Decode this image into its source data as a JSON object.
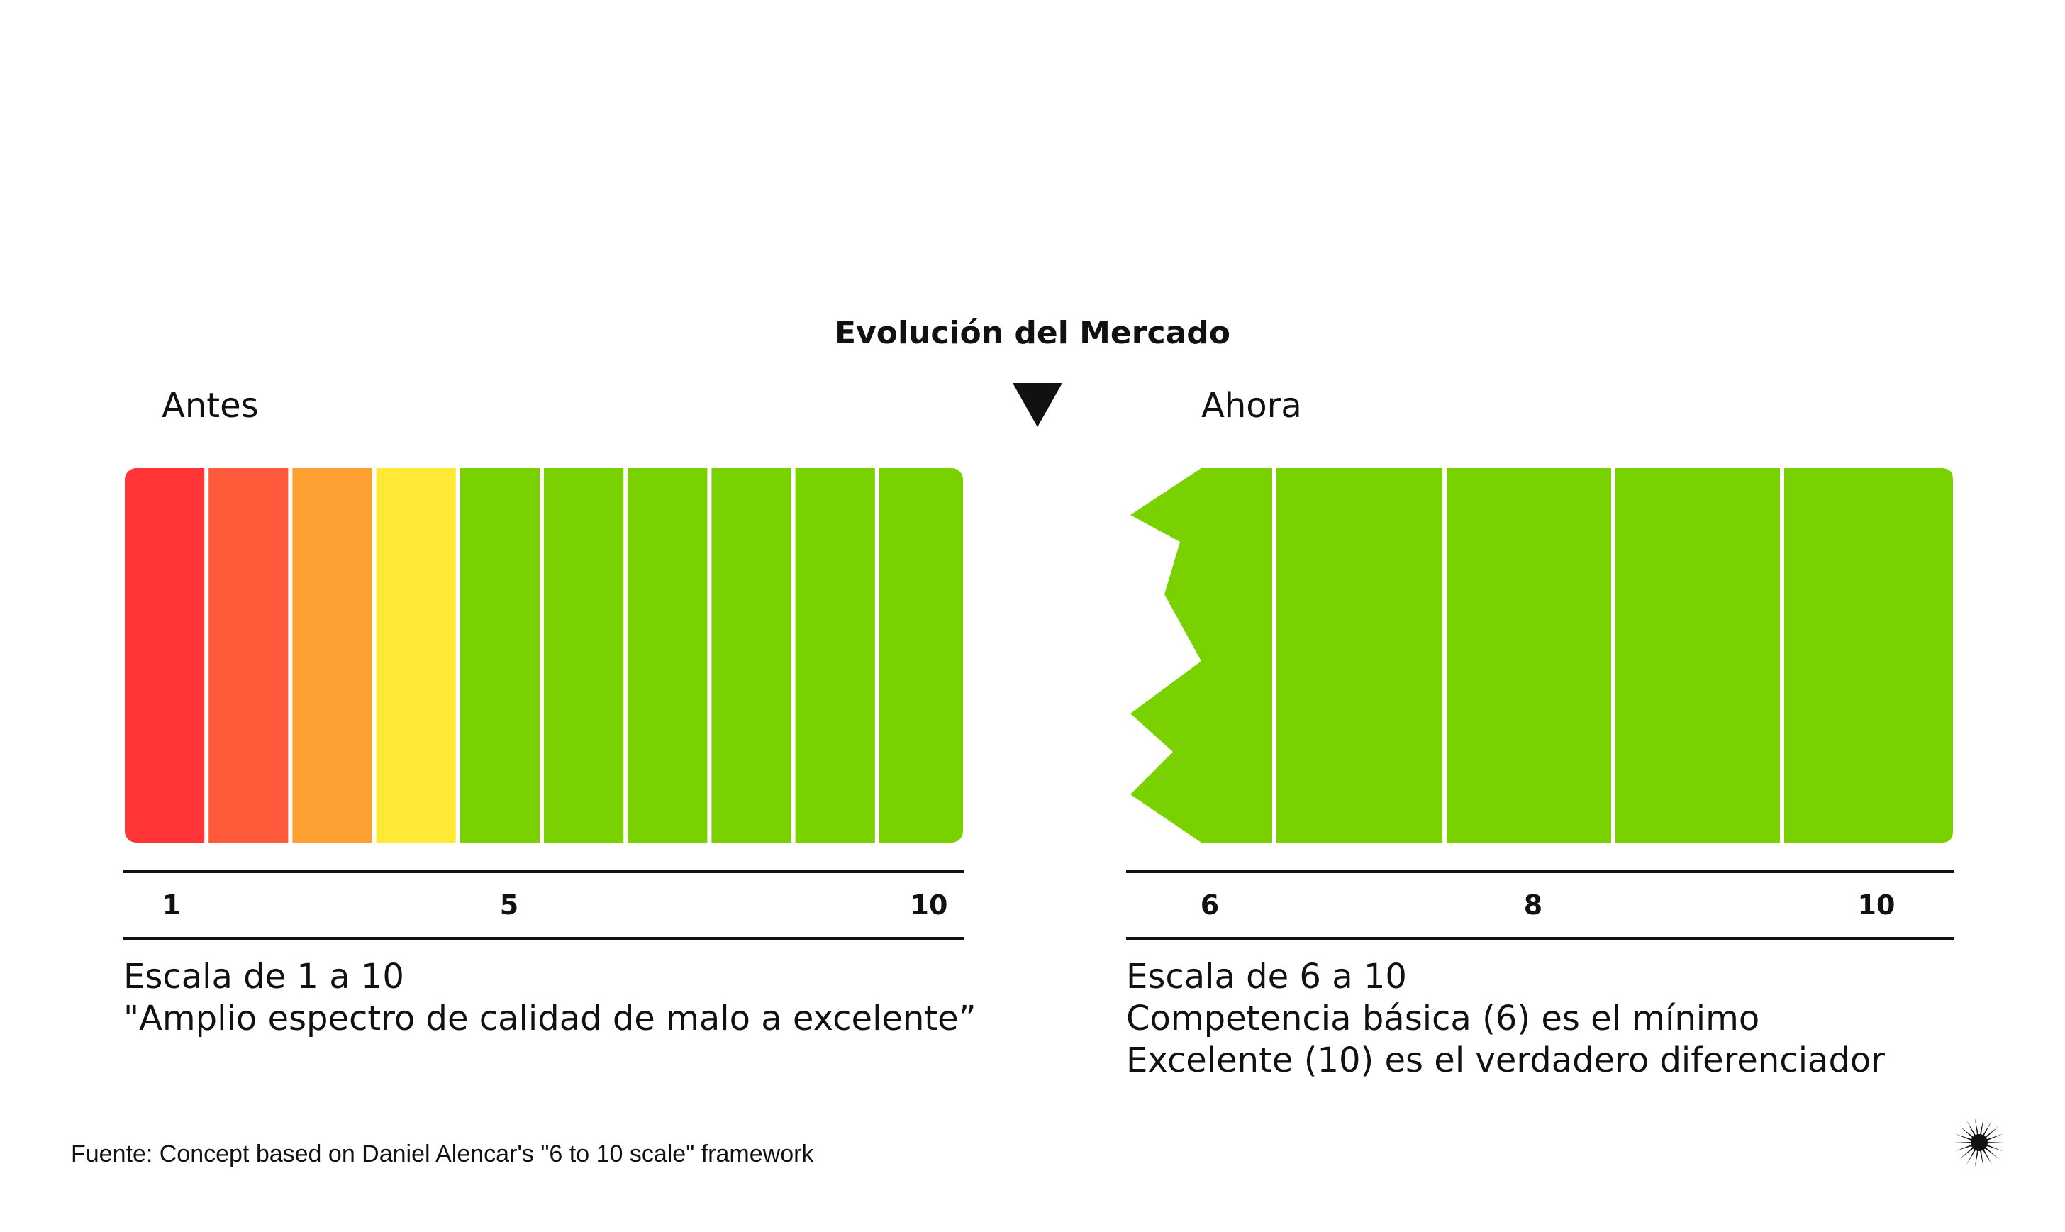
{
  "title": "Evolución del Mercado",
  "colors": {
    "segments_before": [
      "#FF3538",
      "#FF5A3A",
      "#FFA032",
      "#FFE935",
      "#79D100",
      "#79D100",
      "#79D100",
      "#79D100",
      "#79D100",
      "#79D100"
    ],
    "green": "#79D100",
    "ink": "#111111"
  },
  "before": {
    "label": "Antes",
    "scale_min": 1,
    "scale_max": 10,
    "ticks": [
      "1",
      "5",
      "10"
    ],
    "description": [
      "Escala de 1 a 10",
      "\"Amplio espectro de calidad de malo a excelente”"
    ]
  },
  "after": {
    "label": "Ahora",
    "scale_min": 6,
    "scale_max": 10,
    "ticks": [
      "6",
      "8",
      "10"
    ],
    "description": [
      "Escala de 6 a 10",
      "Competencia básica (6) es el mínimo",
      "Excelente (10) es el verdadero diferenciador"
    ]
  },
  "footnote": "Fuente: Concept based on Daniel Alencar's \"6 to 10 scale\" framework",
  "icons": {
    "arrow": "down-triangle-icon",
    "logo": "starburst-logo-icon"
  }
}
